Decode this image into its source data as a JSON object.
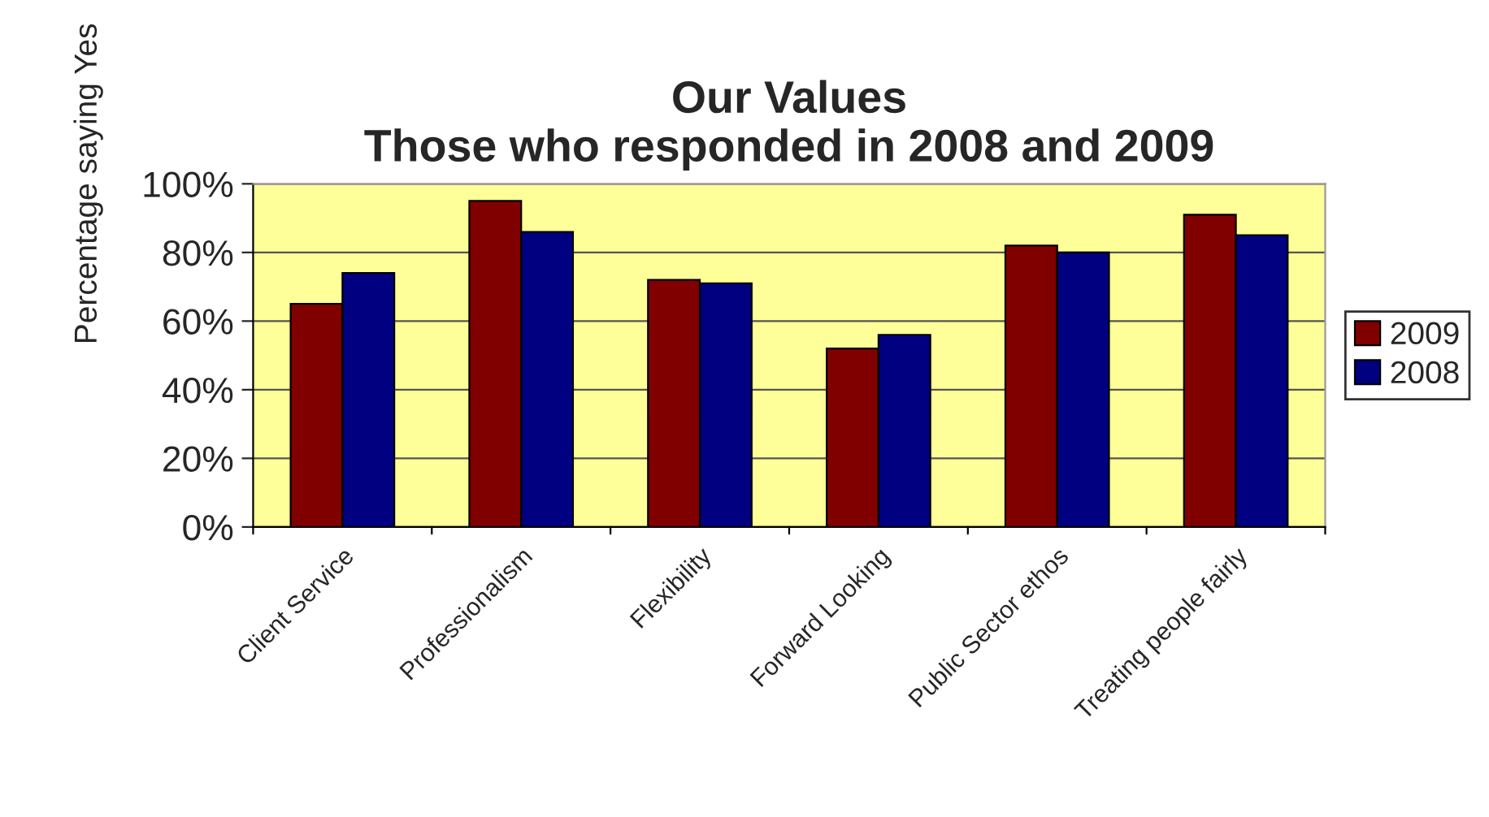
{
  "chart_data": {
    "type": "bar",
    "title": "Our Values\nThose who responded in 2008 and 2009",
    "ylabel": "Percentage saying Yes",
    "categories": [
      "Client Service",
      "Professionalism",
      "Flexibility",
      "Forward Looking",
      "Public Sector ethos",
      "Treating people fairly"
    ],
    "series": [
      {
        "name": "2009",
        "color": "#800000",
        "values": [
          65,
          95,
          72,
          52,
          82,
          91
        ]
      },
      {
        "name": "2008",
        "color": "#000080",
        "values": [
          74,
          86,
          71,
          56,
          80,
          85
        ]
      }
    ],
    "ylim": [
      0,
      100
    ],
    "yticks": [
      {
        "value": 0,
        "label": "0%"
      },
      {
        "value": 20,
        "label": "20%"
      },
      {
        "value": 40,
        "label": "40%"
      },
      {
        "value": 60,
        "label": "60%"
      },
      {
        "value": 80,
        "label": "80%"
      },
      {
        "value": 100,
        "label": "100%"
      }
    ],
    "grid": "y",
    "legend": "right"
  }
}
